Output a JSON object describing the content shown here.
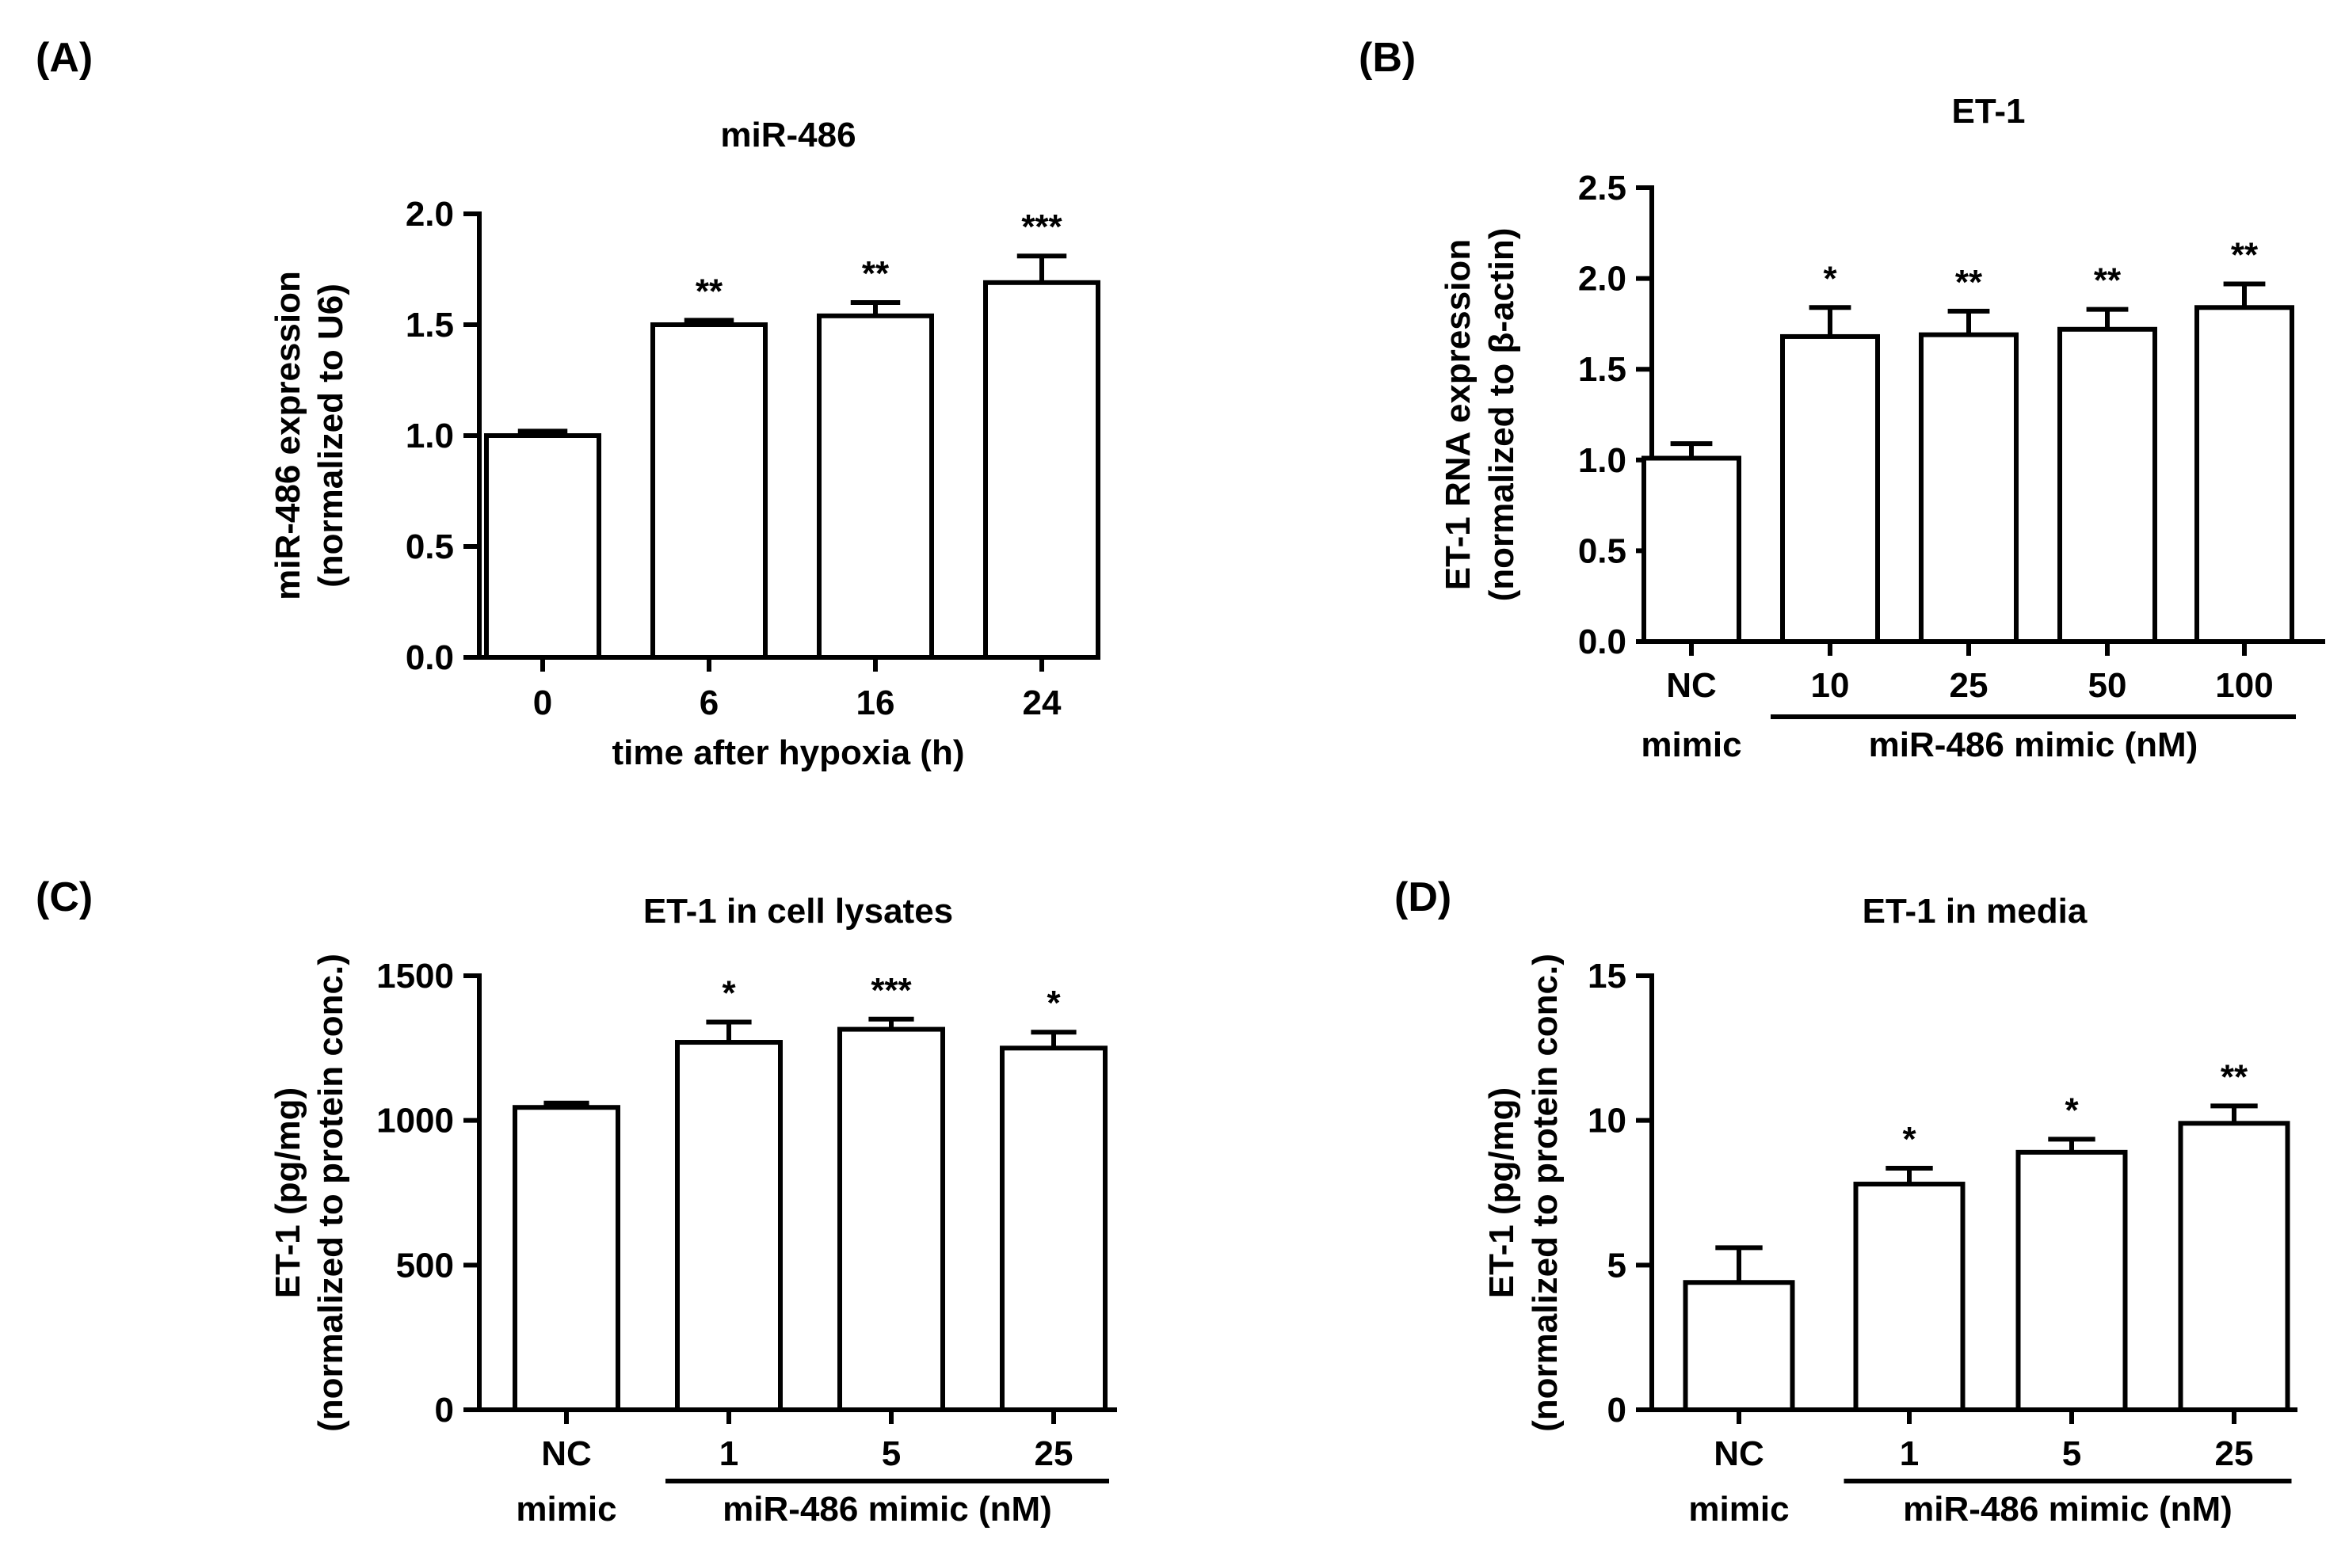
{
  "chart_data": [
    {
      "type": "bar",
      "panel_label": "(A)",
      "title": "miR-486",
      "ylabel_lines": [
        "miR-486 expression",
        "(normalized to U6)"
      ],
      "xlabel": "time after hypoxia (h)",
      "ylim": [
        0,
        2.0
      ],
      "yticks": [
        "0.0",
        "0.5",
        "1.0",
        "1.5",
        "2.0"
      ],
      "ytick_values": [
        0,
        0.5,
        1.0,
        1.5,
        2.0
      ],
      "categories": [
        "0",
        "6",
        "16",
        "24"
      ],
      "values": [
        1.0,
        1.5,
        1.54,
        1.69
      ],
      "errors": [
        0.02,
        0.02,
        0.06,
        0.12
      ],
      "significance": [
        "",
        "**",
        "**",
        "***"
      ],
      "group_label": "",
      "first_sublabel": ""
    },
    {
      "type": "bar",
      "panel_label": "(B)",
      "title": "ET-1",
      "ylabel_lines": [
        "ET-1 RNA expression",
        "(normalized to β-actin)"
      ],
      "xlabel": "",
      "ylim": [
        0,
        2.5
      ],
      "yticks": [
        "0.0",
        "0.5",
        "1.0",
        "1.5",
        "2.0",
        "2.5"
      ],
      "ytick_values": [
        0,
        0.5,
        1.0,
        1.5,
        2.0,
        2.5
      ],
      "categories": [
        "NC",
        "10",
        "25",
        "50",
        "100"
      ],
      "values": [
        1.01,
        1.68,
        1.69,
        1.72,
        1.84
      ],
      "errors": [
        0.08,
        0.16,
        0.13,
        0.11,
        0.13
      ],
      "significance": [
        "",
        "*",
        "**",
        "**",
        "**"
      ],
      "group_label": "miR-486 mimic (nM)",
      "first_sublabel": "mimic"
    },
    {
      "type": "bar",
      "panel_label": "(C)",
      "title": "ET-1 in cell lysates",
      "ylabel_lines": [
        "ET-1 (pg/mg)",
        "(normalized to protein conc.)"
      ],
      "xlabel": "",
      "ylim": [
        0,
        1500
      ],
      "yticks": [
        "0",
        "500",
        "1000",
        "1500"
      ],
      "ytick_values": [
        0,
        500,
        1000,
        1500
      ],
      "categories": [
        "NC",
        "1",
        "5",
        "25"
      ],
      "values": [
        1045,
        1270,
        1315,
        1250
      ],
      "errors": [
        15,
        70,
        35,
        55
      ],
      "significance": [
        "",
        "*",
        "***",
        "*"
      ],
      "group_label": "miR-486 mimic (nM)",
      "first_sublabel": "mimic"
    },
    {
      "type": "bar",
      "panel_label": "(D)",
      "title": "ET-1 in media",
      "ylabel_lines": [
        "ET-1 (pg/mg)",
        "(normalized to protein conc.)"
      ],
      "xlabel": "",
      "ylim": [
        0,
        15
      ],
      "yticks": [
        "0",
        "5",
        "10",
        "15"
      ],
      "ytick_values": [
        0,
        5,
        10,
        15
      ],
      "categories": [
        "NC",
        "1",
        "5",
        "25"
      ],
      "values": [
        4.4,
        7.8,
        8.9,
        9.9
      ],
      "errors": [
        1.2,
        0.55,
        0.45,
        0.6
      ],
      "significance": [
        "",
        "*",
        "*",
        "**"
      ],
      "group_label": "miR-486 mimic (nM)",
      "first_sublabel": "mimic"
    }
  ]
}
